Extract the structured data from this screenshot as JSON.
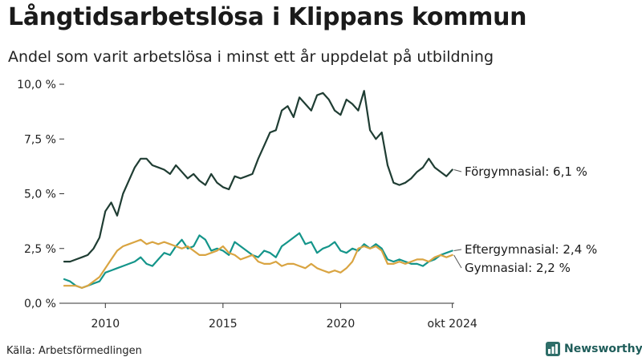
{
  "title": "Långtidsarbetslösa i Klippans kommun",
  "subtitle": "Andel som varit arbetslösa i minst ett år uppdelat på utbildning",
  "source": "Källa: Arbetsförmedlingen",
  "brand": "Newsworthy",
  "chart_data": {
    "type": "line",
    "title": "Långtidsarbetslösa i Klippans kommun",
    "subtitle": "Andel som varit arbetslösa i minst ett år uppdelat på utbildning",
    "xlabel": "",
    "ylabel": "",
    "xlim": [
      2008.25,
      2024.83
    ],
    "ylim": [
      0,
      10
    ],
    "grid": false,
    "x_ticks": [
      {
        "value": 2010,
        "label": "2010"
      },
      {
        "value": 2015,
        "label": "2015"
      },
      {
        "value": 2020,
        "label": "2020"
      },
      {
        "value": 2024.75,
        "label": "okt 2024"
      }
    ],
    "y_ticks": [
      {
        "value": 0,
        "label": "0,0 %"
      },
      {
        "value": 2.5,
        "label": "2,5 %"
      },
      {
        "value": 5,
        "label": "5,0 %"
      },
      {
        "value": 7.5,
        "label": "7,5 %"
      },
      {
        "value": 10,
        "label": "10,0 %"
      }
    ],
    "series": [
      {
        "name": "Förgymnasial",
        "color": "#1f3d33",
        "end_label": "Förgymnasial: 6,1 %",
        "x": [
          2008.25,
          2008.5,
          2008.75,
          2009.0,
          2009.25,
          2009.5,
          2009.75,
          2010.0,
          2010.25,
          2010.5,
          2010.75,
          2011.0,
          2011.25,
          2011.5,
          2011.75,
          2012.0,
          2012.25,
          2012.5,
          2012.75,
          2013.0,
          2013.25,
          2013.5,
          2013.75,
          2014.0,
          2014.25,
          2014.5,
          2014.75,
          2015.0,
          2015.25,
          2015.5,
          2015.75,
          2016.0,
          2016.25,
          2016.5,
          2016.75,
          2017.0,
          2017.25,
          2017.5,
          2017.75,
          2018.0,
          2018.25,
          2018.5,
          2018.75,
          2019.0,
          2019.25,
          2019.5,
          2019.75,
          2020.0,
          2020.25,
          2020.5,
          2020.75,
          2021.0,
          2021.25,
          2021.5,
          2021.75,
          2022.0,
          2022.25,
          2022.5,
          2022.75,
          2023.0,
          2023.25,
          2023.5,
          2023.75,
          2024.0,
          2024.25,
          2024.5,
          2024.75
        ],
        "values": [
          1.9,
          1.9,
          2.0,
          2.1,
          2.2,
          2.5,
          3.0,
          4.2,
          4.6,
          4.0,
          5.0,
          5.6,
          6.2,
          6.6,
          6.6,
          6.3,
          6.2,
          6.1,
          5.9,
          6.3,
          6.0,
          5.7,
          5.9,
          5.6,
          5.4,
          5.9,
          5.5,
          5.3,
          5.2,
          5.8,
          5.7,
          5.8,
          5.9,
          6.6,
          7.2,
          7.8,
          7.9,
          8.8,
          9.0,
          8.5,
          9.4,
          9.1,
          8.8,
          9.5,
          9.6,
          9.3,
          8.8,
          8.6,
          9.3,
          9.1,
          8.8,
          9.7,
          7.9,
          7.5,
          7.8,
          6.3,
          5.5,
          5.4,
          5.5,
          5.7,
          6.0,
          6.2,
          6.6,
          6.2,
          6.0,
          5.8,
          6.1
        ]
      },
      {
        "name": "Eftergymnasial",
        "color": "#14958a",
        "end_label": "Eftergymnasial: 2,4 %",
        "x": [
          2008.25,
          2008.5,
          2008.75,
          2009.0,
          2009.25,
          2009.5,
          2009.75,
          2010.0,
          2010.25,
          2010.5,
          2010.75,
          2011.0,
          2011.25,
          2011.5,
          2011.75,
          2012.0,
          2012.25,
          2012.5,
          2012.75,
          2013.0,
          2013.25,
          2013.5,
          2013.75,
          2014.0,
          2014.25,
          2014.5,
          2014.75,
          2015.0,
          2015.25,
          2015.5,
          2015.75,
          2016.0,
          2016.25,
          2016.5,
          2016.75,
          2017.0,
          2017.25,
          2017.5,
          2017.75,
          2018.0,
          2018.25,
          2018.5,
          2018.75,
          2019.0,
          2019.25,
          2019.5,
          2019.75,
          2020.0,
          2020.25,
          2020.5,
          2020.75,
          2021.0,
          2021.25,
          2021.5,
          2021.75,
          2022.0,
          2022.25,
          2022.5,
          2022.75,
          2023.0,
          2023.25,
          2023.5,
          2023.75,
          2024.0,
          2024.25,
          2024.5,
          2024.75
        ],
        "values": [
          1.1,
          1.0,
          0.8,
          0.7,
          0.8,
          0.9,
          1.0,
          1.4,
          1.5,
          1.6,
          1.7,
          1.8,
          1.9,
          2.1,
          1.8,
          1.7,
          2.0,
          2.3,
          2.2,
          2.6,
          2.9,
          2.5,
          2.6,
          3.1,
          2.9,
          2.4,
          2.5,
          2.4,
          2.2,
          2.8,
          2.6,
          2.4,
          2.2,
          2.1,
          2.4,
          2.3,
          2.1,
          2.6,
          2.8,
          3.0,
          3.2,
          2.7,
          2.8,
          2.3,
          2.5,
          2.6,
          2.8,
          2.4,
          2.3,
          2.5,
          2.4,
          2.7,
          2.5,
          2.7,
          2.5,
          2.0,
          1.9,
          2.0,
          1.9,
          1.8,
          1.8,
          1.7,
          1.9,
          2.0,
          2.2,
          2.3,
          2.4
        ]
      },
      {
        "name": "Gymnasial",
        "color": "#d9a441",
        "end_label": "Gymnasial: 2,2 %",
        "x": [
          2008.25,
          2008.5,
          2008.75,
          2009.0,
          2009.25,
          2009.5,
          2009.75,
          2010.0,
          2010.25,
          2010.5,
          2010.75,
          2011.0,
          2011.25,
          2011.5,
          2011.75,
          2012.0,
          2012.25,
          2012.5,
          2012.75,
          2013.0,
          2013.25,
          2013.5,
          2013.75,
          2014.0,
          2014.25,
          2014.5,
          2014.75,
          2015.0,
          2015.25,
          2015.5,
          2015.75,
          2016.0,
          2016.25,
          2016.5,
          2016.75,
          2017.0,
          2017.25,
          2017.5,
          2017.75,
          2018.0,
          2018.25,
          2018.5,
          2018.75,
          2019.0,
          2019.25,
          2019.5,
          2019.75,
          2020.0,
          2020.25,
          2020.5,
          2020.75,
          2021.0,
          2021.25,
          2021.5,
          2021.75,
          2022.0,
          2022.25,
          2022.5,
          2022.75,
          2023.0,
          2023.25,
          2023.5,
          2023.75,
          2024.0,
          2024.25,
          2024.5,
          2024.75
        ],
        "values": [
          0.8,
          0.8,
          0.8,
          0.7,
          0.8,
          1.0,
          1.2,
          1.6,
          2.0,
          2.4,
          2.6,
          2.7,
          2.8,
          2.9,
          2.7,
          2.8,
          2.7,
          2.8,
          2.7,
          2.6,
          2.5,
          2.6,
          2.4,
          2.2,
          2.2,
          2.3,
          2.4,
          2.6,
          2.3,
          2.2,
          2.0,
          2.1,
          2.2,
          1.9,
          1.8,
          1.8,
          1.9,
          1.7,
          1.8,
          1.8,
          1.7,
          1.6,
          1.8,
          1.6,
          1.5,
          1.4,
          1.5,
          1.4,
          1.6,
          1.9,
          2.5,
          2.6,
          2.5,
          2.6,
          2.4,
          1.8,
          1.8,
          1.9,
          1.8,
          1.9,
          2.0,
          2.0,
          1.9,
          2.1,
          2.2,
          2.1,
          2.2
        ]
      }
    ]
  }
}
